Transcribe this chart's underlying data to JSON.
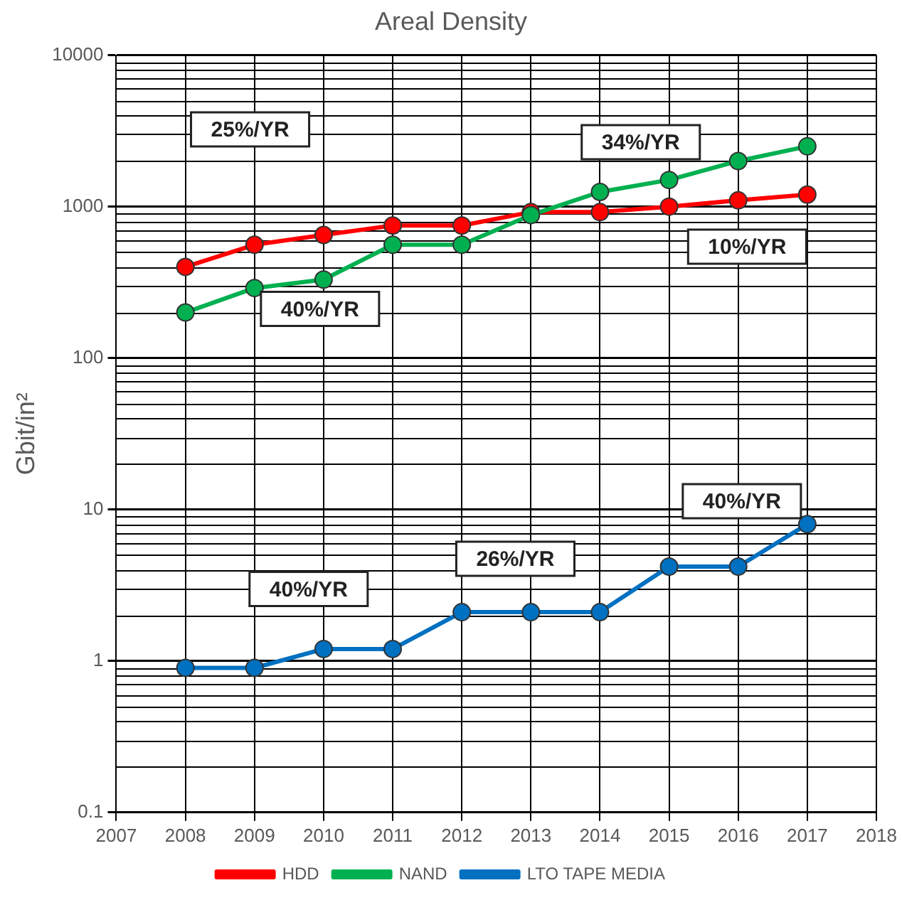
{
  "chart_data": {
    "type": "line",
    "title": "Areal Density",
    "ylabel": "Gbit/in²",
    "x": [
      2008,
      2009,
      2010,
      2011,
      2012,
      2013,
      2014,
      2015,
      2016,
      2017
    ],
    "series": [
      {
        "name": "HDD",
        "color": "#ff0000",
        "values": [
          400,
          560,
          650,
          750,
          750,
          920,
          920,
          1000,
          1100,
          1200
        ]
      },
      {
        "name": "NAND",
        "color": "#00b050",
        "values": [
          200,
          290,
          330,
          560,
          560,
          880,
          1250,
          1500,
          2000,
          2500
        ]
      },
      {
        "name": "LTO TAPE MEDIA",
        "color": "#0070c0",
        "values": [
          0.9,
          0.9,
          1.2,
          1.2,
          2.1,
          2.1,
          2.1,
          4.2,
          4.2,
          8
        ]
      }
    ],
    "xlim": [
      2007,
      2018
    ],
    "xticks": [
      2007,
      2008,
      2009,
      2010,
      2011,
      2012,
      2013,
      2014,
      2015,
      2016,
      2017,
      2018
    ],
    "ylim": [
      0.1,
      10000
    ],
    "yticks": [
      0.1,
      1,
      10,
      100,
      1000,
      10000
    ],
    "log": "y",
    "grid": true,
    "legend": "bottom",
    "marker": "circle",
    "line_style": "solid",
    "annotations": [
      "25%/YR",
      "40%/YR",
      "34%/YR",
      "10%/YR",
      "40%/YR",
      "26%/YR",
      "40%/YR"
    ]
  }
}
